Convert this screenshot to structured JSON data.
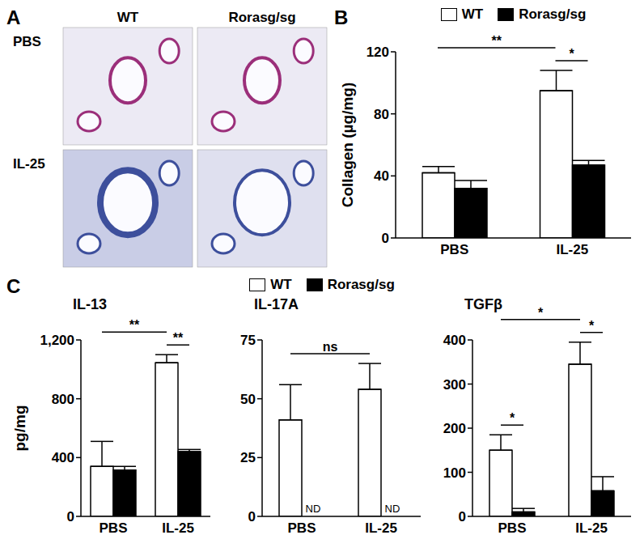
{
  "chart_data": [
    {
      "type": "image_grid",
      "panel_label": "A",
      "columns": [
        "WT",
        "Rorasg/sg"
      ],
      "rows": [
        "PBS",
        "IL-25"
      ]
    },
    {
      "type": "bar",
      "panel_label": "B",
      "y_label": "Collagen (µg/mg)",
      "categories": [
        "PBS",
        "IL-25"
      ],
      "series": [
        {
          "name": "WT",
          "color": "#ffffff",
          "values": [
            42,
            95
          ],
          "errors": [
            4,
            13
          ]
        },
        {
          "name": "Rorasg/sg",
          "color": "#000000",
          "values": [
            32,
            47
          ],
          "errors": [
            5,
            3
          ]
        }
      ],
      "ylim": [
        0,
        120
      ],
      "yticks": [
        0,
        40,
        80,
        120
      ],
      "grid": false,
      "legend": "top",
      "annotations": [
        {
          "text": "**",
          "from": {
            "category": "PBS",
            "series": "WT"
          },
          "to": {
            "category": "IL-25",
            "series": "WT"
          }
        },
        {
          "text": "*",
          "from": {
            "category": "IL-25",
            "series": "WT"
          },
          "to": {
            "category": "IL-25",
            "series": "Rorasg/sg"
          }
        }
      ]
    },
    {
      "type": "bar",
      "panel_label": "C",
      "title": "IL-13",
      "y_label": "pg/mg",
      "categories": [
        "PBS",
        "IL-25"
      ],
      "series": [
        {
          "name": "WT",
          "color": "#ffffff",
          "values": [
            340,
            1045
          ],
          "errors": [
            170,
            55
          ]
        },
        {
          "name": "Rorasg/sg",
          "color": "#000000",
          "values": [
            315,
            440
          ],
          "errors": [
            25,
            15
          ]
        }
      ],
      "ylim": [
        0,
        1200
      ],
      "yticks": [
        0,
        400,
        800,
        {
          "value": 1200,
          "label": "1,200"
        }
      ],
      "grid": false,
      "legend": "top",
      "annotations": [
        {
          "text": "**",
          "from": {
            "category": "PBS",
            "series": "WT"
          },
          "to": {
            "category": "IL-25",
            "series": "WT"
          }
        },
        {
          "text": "**",
          "from": {
            "category": "IL-25",
            "series": "WT"
          },
          "to": {
            "category": "IL-25",
            "series": "Rorasg/sg"
          }
        }
      ]
    },
    {
      "type": "bar",
      "title": "IL-17A",
      "categories": [
        "PBS",
        "IL-25"
      ],
      "series": [
        {
          "name": "WT",
          "color": "#ffffff",
          "values": [
            41,
            54
          ],
          "errors": [
            15,
            11
          ]
        },
        {
          "name": "Rorasg/sg",
          "color": "#000000",
          "values": [
            null,
            null
          ],
          "errors": [
            null,
            null
          ]
        }
      ],
      "ylim": [
        0,
        75
      ],
      "yticks": [
        0,
        25,
        50,
        75
      ],
      "grid": false,
      "annotations": [
        {
          "text": "ns",
          "from": {
            "category": "PBS",
            "series": "WT"
          },
          "to": {
            "category": "IL-25",
            "series": "WT"
          }
        },
        {
          "text": "ND",
          "at": {
            "category": "PBS",
            "series": "Rorasg/sg"
          }
        },
        {
          "text": "ND",
          "at": {
            "category": "IL-25",
            "series": "Rorasg/sg"
          }
        }
      ]
    },
    {
      "type": "bar",
      "title": "TGFβ",
      "categories": [
        "PBS",
        "IL-25"
      ],
      "series": [
        {
          "name": "WT",
          "color": "#ffffff",
          "values": [
            150,
            345
          ],
          "errors": [
            35,
            50
          ]
        },
        {
          "name": "Rorasg/sg",
          "color": "#000000",
          "values": [
            10,
            58
          ],
          "errors": [
            8,
            32
          ]
        }
      ],
      "ylim": [
        0,
        400
      ],
      "yticks": [
        0,
        100,
        200,
        300,
        400
      ],
      "grid": false,
      "annotations": [
        {
          "text": "*",
          "from": {
            "category": "PBS",
            "series": "WT"
          },
          "to": {
            "category": "IL-25",
            "series": "WT"
          }
        },
        {
          "text": "*",
          "from": {
            "category": "PBS",
            "series": "WT"
          },
          "to": {
            "category": "PBS",
            "series": "Rorasg/sg"
          }
        },
        {
          "text": "*",
          "from": {
            "category": "IL-25",
            "series": "WT"
          },
          "to": {
            "category": "IL-25",
            "series": "Rorasg/sg"
          }
        }
      ]
    }
  ]
}
